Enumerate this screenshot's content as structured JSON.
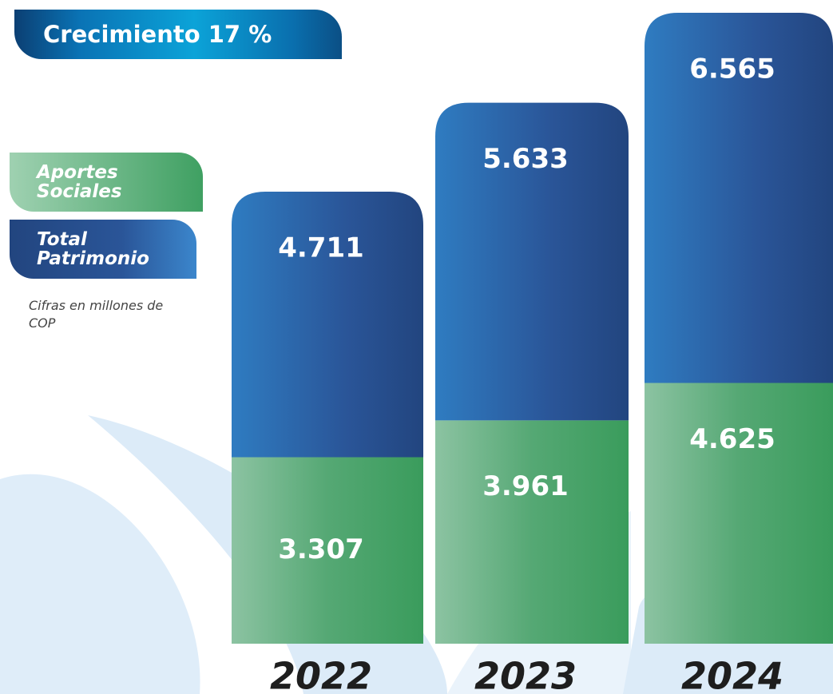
{
  "chart_data": {
    "type": "bar",
    "stacked": true,
    "title": "Crecimiento 17 %",
    "subtitle": "Cifras en millones de COP",
    "categories": [
      "2022",
      "2023",
      "2024"
    ],
    "series": [
      {
        "name": "Aportes Sociales",
        "color": "#3fa062",
        "values": [
          3307,
          3961,
          4625
        ],
        "value_labels": [
          "3.307",
          "3.961",
          "4.625"
        ]
      },
      {
        "name": "Total Patrimonio",
        "color": "#23478a",
        "values": [
          4711,
          5633,
          6565
        ],
        "value_labels": [
          "4.711",
          "5.633",
          "6.565"
        ]
      }
    ]
  }
}
